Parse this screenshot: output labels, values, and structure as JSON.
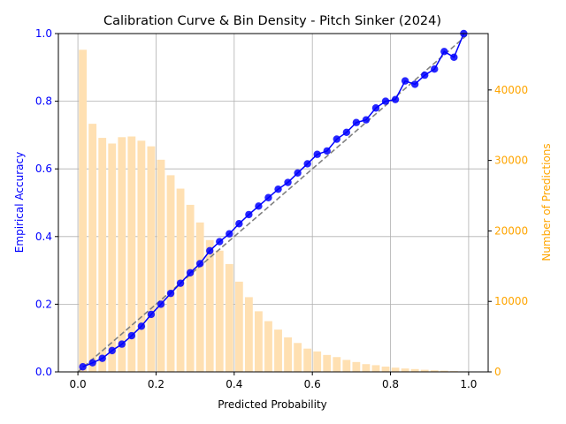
{
  "chart_data": {
    "type": "bar+line",
    "title": "Calibration Curve & Bin Density - Pitch Sinker (2024)",
    "xlabel": "Predicted Probability",
    "ylabel_left": "Empirical Accuracy",
    "ylabel_right": "Number of Predictions",
    "xlim": [
      -0.05,
      1.05
    ],
    "ylim_left": [
      0,
      1
    ],
    "ylim_right": [
      0,
      48000
    ],
    "x_ticks": [
      "0.0",
      "0.2",
      "0.4",
      "0.6",
      "0.8",
      "1.0"
    ],
    "y_left_ticks": [
      "0.0",
      "0.2",
      "0.4",
      "0.6",
      "0.8",
      "1.0"
    ],
    "y_right_ticks": [
      "0",
      "10000",
      "20000",
      "30000",
      "40000"
    ],
    "grid": true,
    "colors": {
      "accuracy": "#0000ff",
      "bins": "#ffe0b2",
      "reference": "#808080",
      "right_axis": "#ffa500"
    },
    "reference_line": {
      "x": [
        0,
        1
      ],
      "y": [
        0,
        1
      ]
    },
    "bin_centers": [
      0.0125,
      0.0375,
      0.0625,
      0.0875,
      0.1125,
      0.1375,
      0.1625,
      0.1875,
      0.2125,
      0.2375,
      0.2625,
      0.2875,
      0.3125,
      0.3375,
      0.3625,
      0.3875,
      0.4125,
      0.4375,
      0.4625,
      0.4875,
      0.5125,
      0.5375,
      0.5625,
      0.5875,
      0.6125,
      0.6375,
      0.6625,
      0.6875,
      0.7125,
      0.7375,
      0.7625,
      0.7875,
      0.8125,
      0.8375,
      0.8625,
      0.8875,
      0.9125,
      0.9375,
      0.9625,
      0.9875
    ],
    "counts": [
      45700,
      35200,
      33200,
      32400,
      33300,
      33400,
      32800,
      32000,
      30100,
      27900,
      26000,
      23700,
      21200,
      18700,
      17200,
      15300,
      12800,
      10600,
      8600,
      7200,
      6000,
      4900,
      4100,
      3300,
      2900,
      2400,
      2100,
      1700,
      1400,
      1100,
      950,
      750,
      600,
      480,
      400,
      300,
      220,
      170,
      110,
      70
    ],
    "accuracy": [
      0.015,
      0.027,
      0.04,
      0.063,
      0.082,
      0.107,
      0.135,
      0.17,
      0.2,
      0.232,
      0.262,
      0.293,
      0.32,
      0.358,
      0.385,
      0.408,
      0.438,
      0.465,
      0.49,
      0.515,
      0.54,
      0.56,
      0.588,
      0.615,
      0.643,
      0.653,
      0.688,
      0.708,
      0.737,
      0.745,
      0.78,
      0.8,
      0.805,
      0.86,
      0.85,
      0.877,
      0.895,
      0.947,
      0.93,
      1.0
    ]
  }
}
